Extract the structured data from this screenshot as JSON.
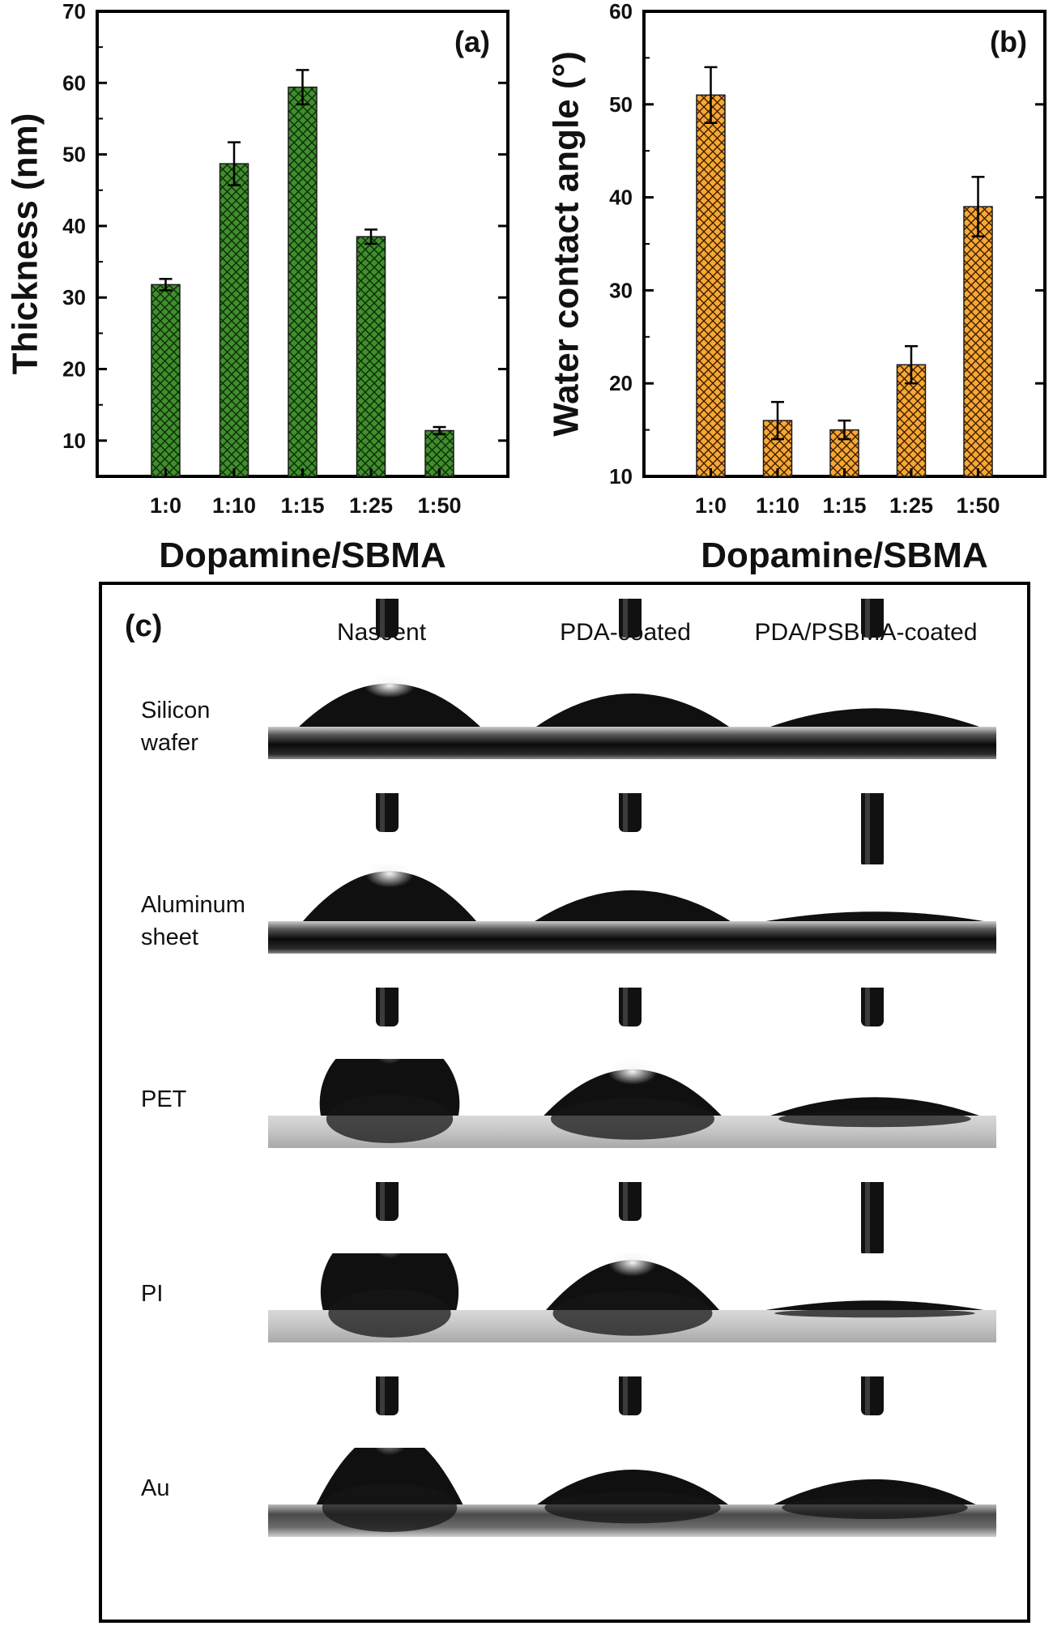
{
  "chart_data": [
    {
      "type": "bar",
      "panel": "(a)",
      "categories": [
        "1:0",
        "1:10",
        "1:15",
        "1:25",
        "1:50"
      ],
      "values": [
        31.8,
        48.7,
        59.4,
        38.5,
        11.4
      ],
      "errors": [
        0.8,
        3.0,
        2.4,
        1.0,
        0.5
      ],
      "xlabel": "Dopamine/SBMA",
      "ylabel": "Thickness (nm)",
      "ylim": [
        5,
        70
      ],
      "yticks": [
        10,
        20,
        30,
        40,
        50,
        60,
        70
      ],
      "bar_color": "#3a8a2a",
      "hatch": "crosshatch"
    },
    {
      "type": "bar",
      "panel": "(b)",
      "categories": [
        "1:0",
        "1:10",
        "1:15",
        "1:25",
        "1:50"
      ],
      "values": [
        51,
        16,
        15,
        22,
        39
      ],
      "errors": [
        3.0,
        2.0,
        1.0,
        2.0,
        3.2
      ],
      "xlabel": "Dopamine/SBMA",
      "ylabel": "Water contact angle (°)",
      "ylim": [
        10,
        60
      ],
      "yticks": [
        10,
        20,
        30,
        40,
        50,
        60
      ],
      "bar_color": "#f5a623",
      "hatch": "crosshatch"
    }
  ],
  "panel_c": {
    "label": "(c)",
    "columns": [
      "Nascent",
      "PDA-coated",
      "PDA/PSBMA-coated"
    ],
    "rows": [
      {
        "label_lines": [
          "Silicon",
          "wafer"
        ],
        "substrate": "dark",
        "contact_angles": [
          51,
          38,
          20
        ]
      },
      {
        "label_lines": [
          "Aluminum",
          "sheet"
        ],
        "substrate": "dark",
        "contact_angles": [
          60,
          35,
          10
        ]
      },
      {
        "label_lines": [
          "PET"
        ],
        "substrate": "light",
        "contact_angles": [
          100,
          55,
          20
        ]
      },
      {
        "label_lines": [
          "PI"
        ],
        "substrate": "light",
        "contact_angles": [
          105,
          60,
          10
        ]
      },
      {
        "label_lines": [
          "Au"
        ],
        "substrate": "band",
        "contact_angles": [
          90,
          40,
          28
        ]
      }
    ]
  }
}
